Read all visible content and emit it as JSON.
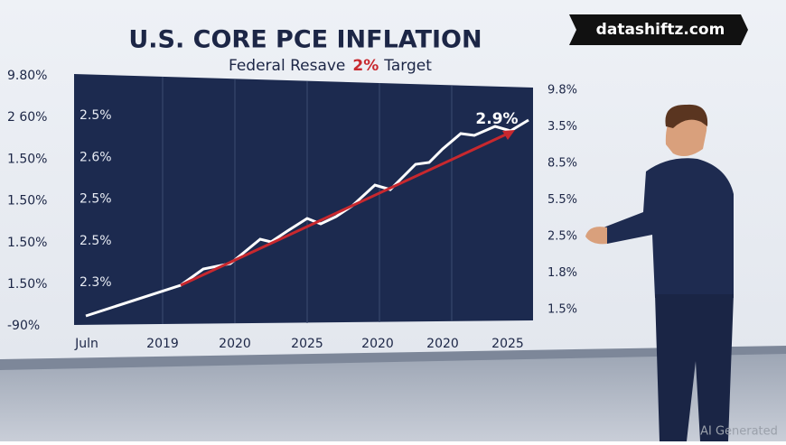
{
  "header": {
    "title": "U.S. CORE PCE INFLATION",
    "subtitle_start": "Federal Resave",
    "subtitle_highlight": "2%",
    "subtitle_end": "Target"
  },
  "badge": "datashiftz.com",
  "screen": {
    "left_labels": [
      "9.80%",
      "2 60%",
      "1.50%",
      "1.50%",
      "1.50%",
      "1.50%",
      "-90%"
    ],
    "inner_labels": [
      "2.5%",
      "2.6%",
      "2.5%",
      "2.5%",
      "2.3%"
    ],
    "right_labels": [
      "9.8%",
      "3.5%",
      "8.5%",
      "5.5%",
      "2.5%",
      "1.8%",
      "1.5%"
    ],
    "x_labels": [
      "Juln",
      "2019",
      "2020",
      "2025",
      "2020",
      "2020",
      "2025"
    ],
    "callout": "2.9%"
  },
  "watermark": "AI Generated"
}
